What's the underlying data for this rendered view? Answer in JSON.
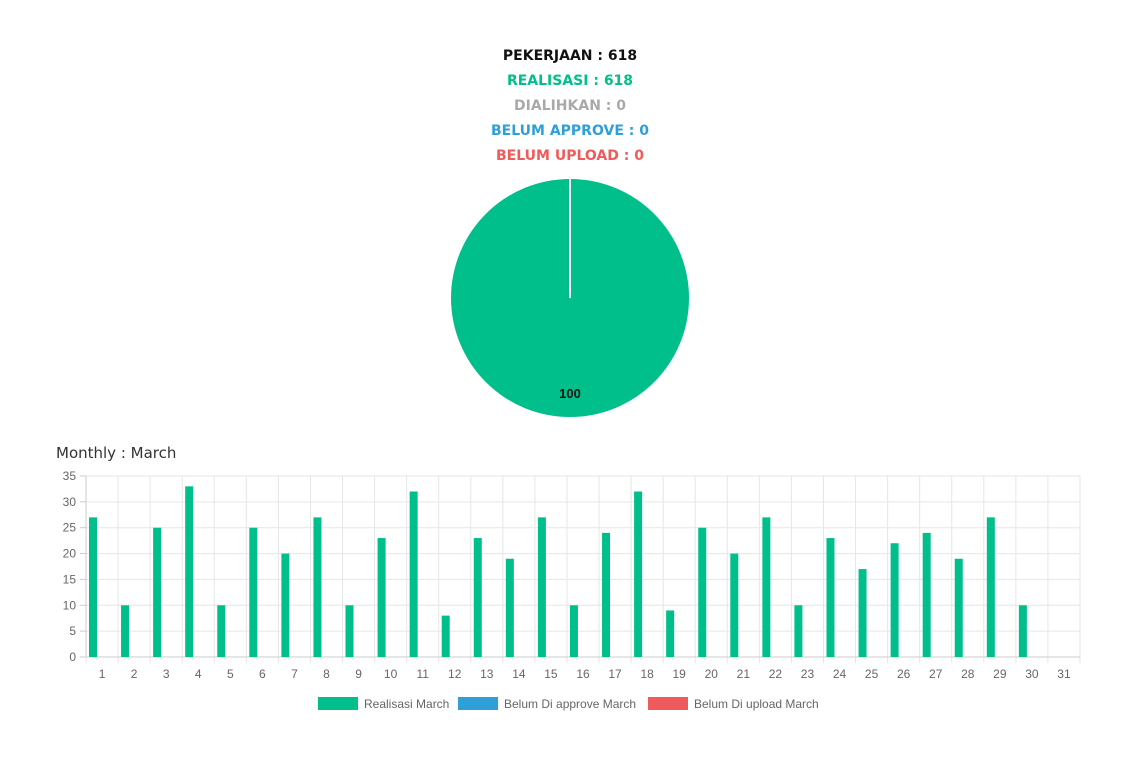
{
  "colors": {
    "realisasi": "#00bf8a",
    "dialihkan": "#a9a9a9",
    "belum_approve": "#2f9fd8",
    "belum_upload": "#f05a5a",
    "pekerjaan": "#111111"
  },
  "stats": {
    "pekerjaan": "PEKERJAAN : 618",
    "realisasi": "REALISASI : 618",
    "dialihkan": "DIALIHKAN : 0",
    "belum_approve": "BELUM APPROVE : 0",
    "belum_upload": "BELUM UPLOAD : 0"
  },
  "monthly_title": "Monthly : March",
  "chart_data": [
    {
      "type": "pie",
      "slices": [
        {
          "value": 100,
          "label": "100",
          "color": "#00bf8a"
        }
      ]
    },
    {
      "type": "bar",
      "categories": [
        "1",
        "2",
        "3",
        "4",
        "5",
        "6",
        "7",
        "8",
        "9",
        "10",
        "11",
        "12",
        "13",
        "14",
        "15",
        "16",
        "17",
        "18",
        "19",
        "20",
        "21",
        "22",
        "23",
        "24",
        "25",
        "26",
        "27",
        "28",
        "29",
        "30",
        "31"
      ],
      "series": [
        {
          "name": "Realisasi March",
          "color": "#00bf8a",
          "values": [
            27,
            10,
            25,
            33,
            10,
            25,
            20,
            27,
            10,
            23,
            32,
            8,
            23,
            19,
            27,
            10,
            24,
            32,
            9,
            25,
            20,
            27,
            10,
            23,
            17,
            22,
            24,
            19,
            27,
            10,
            0
          ]
        },
        {
          "name": "Belum Di approve March",
          "color": "#2f9fd8",
          "values": [
            0,
            0,
            0,
            0,
            0,
            0,
            0,
            0,
            0,
            0,
            0,
            0,
            0,
            0,
            0,
            0,
            0,
            0,
            0,
            0,
            0,
            0,
            0,
            0,
            0,
            0,
            0,
            0,
            0,
            0,
            0
          ]
        },
        {
          "name": "Belum Di upload March",
          "color": "#f05a5a",
          "values": [
            0,
            0,
            0,
            0,
            0,
            0,
            0,
            0,
            0,
            0,
            0,
            0,
            0,
            0,
            0,
            0,
            0,
            0,
            0,
            0,
            0,
            0,
            0,
            0,
            0,
            0,
            0,
            0,
            0,
            0,
            0
          ]
        }
      ],
      "ylim": [
        0,
        35
      ],
      "yticks": [
        0,
        5,
        10,
        15,
        20,
        25,
        30,
        35
      ],
      "grid": true,
      "legend": "bottom"
    }
  ]
}
